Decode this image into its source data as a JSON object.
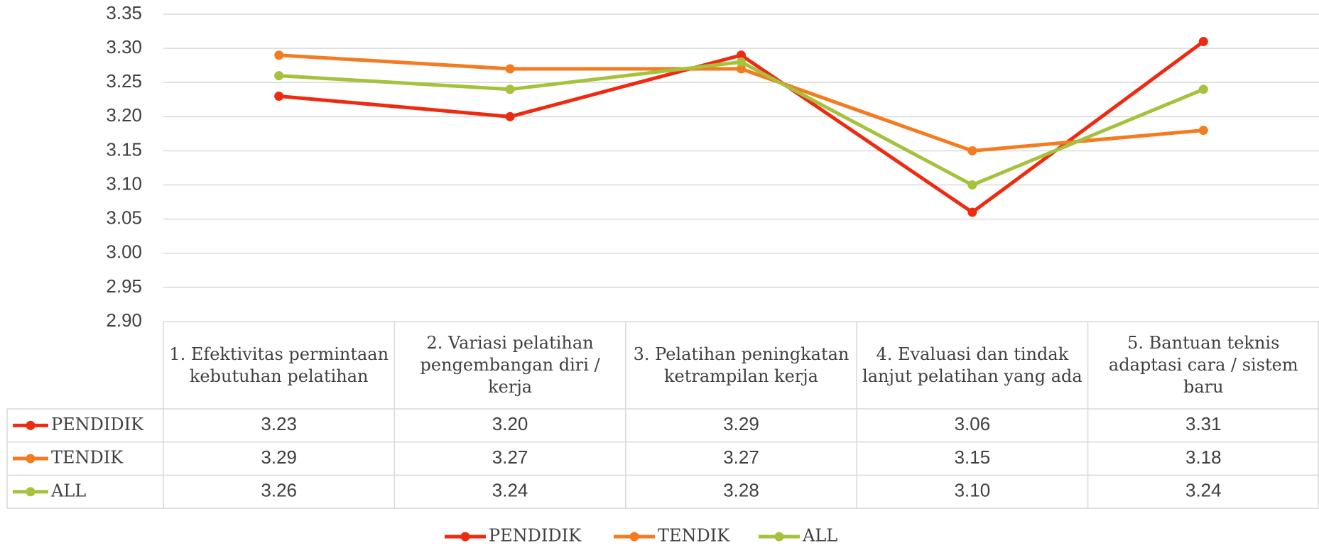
{
  "chart_data": {
    "type": "line",
    "categories": [
      "1. Efektivitas permintaan kebutuhan pelatihan",
      "2. Variasi pelatihan pengembangan diri / kerja",
      "3. Pelatihan peningkatan ketrampilan kerja",
      "4. Evaluasi dan tindak lanjut pelatihan yang ada",
      "5. Bantuan teknis adaptasi cara / sistem baru"
    ],
    "series": [
      {
        "name": "PENDIDIK",
        "color": "#ee2a10",
        "values": [
          3.23,
          3.2,
          3.29,
          3.06,
          3.31
        ],
        "value_labels": [
          "3.23",
          "3.20",
          "3.29",
          "3.06",
          "3.31"
        ]
      },
      {
        "name": "TENDIK",
        "color": "#f47b20",
        "values": [
          3.29,
          3.27,
          3.27,
          3.15,
          3.18
        ],
        "value_labels": [
          "3.29",
          "3.27",
          "3.27",
          "3.15",
          "3.18"
        ]
      },
      {
        "name": "ALL",
        "color": "#a5c23c",
        "values": [
          3.26,
          3.24,
          3.28,
          3.1,
          3.24
        ],
        "value_labels": [
          "3.26",
          "3.24",
          "3.28",
          "3.10",
          "3.24"
        ]
      }
    ],
    "ylim": [
      2.9,
      3.35
    ],
    "yticks": [
      {
        "value": 2.9,
        "label": "2.90"
      },
      2.95,
      {
        "value": 3,
        "label": "3.00"
      },
      3.05,
      {
        "value": 3.1,
        "label": "3.10"
      },
      3.15,
      {
        "value": 3.2,
        "label": "3.20"
      },
      3.25,
      {
        "value": 3.3,
        "label": "3.30"
      },
      3.35
    ],
    "grid": true,
    "legend": "bottom"
  }
}
